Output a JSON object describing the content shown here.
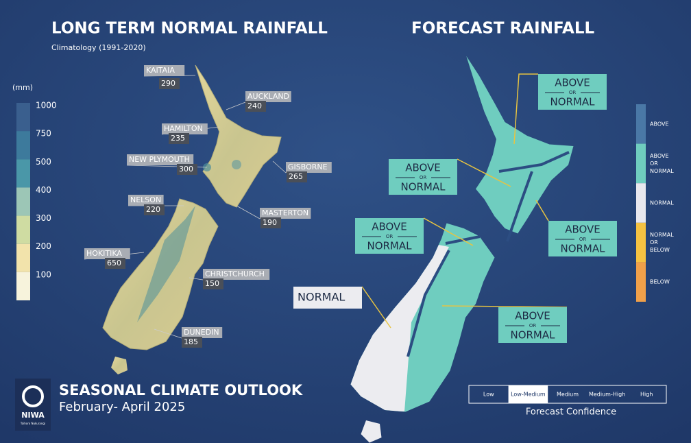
{
  "left": {
    "title": "LONG TERM NORMAL RAINFALL",
    "subtitle": "Climatology (1991-2020)",
    "unit": "(mm)",
    "scale": [
      {
        "label": 1000,
        "color": "#3a5f8e"
      },
      {
        "label": 750,
        "color": "#3d7a9c"
      },
      {
        "label": 500,
        "color": "#4a97a8"
      },
      {
        "label": 400,
        "color": "#9cc6b6"
      },
      {
        "label": 300,
        "color": "#cfdca2"
      },
      {
        "label": 200,
        "color": "#f2e3ab"
      },
      {
        "label": 100,
        "color": "#f7f3dc"
      }
    ],
    "cities": [
      {
        "name": "KAITAIA",
        "value": 290
      },
      {
        "name": "AUCKLAND",
        "value": 240
      },
      {
        "name": "HAMILTON",
        "value": 235
      },
      {
        "name": "NEW PLYMOUTH",
        "value": 300
      },
      {
        "name": "GISBORNE",
        "value": 265
      },
      {
        "name": "NELSON",
        "value": 220
      },
      {
        "name": "MASTERTON",
        "value": 190
      },
      {
        "name": "HOKITIKA",
        "value": 650
      },
      {
        "name": "CHRISTCHURCH",
        "value": 150
      },
      {
        "name": "DUNEDIN",
        "value": 185
      }
    ]
  },
  "right": {
    "title": "FORECAST RAINFALL",
    "regions": [
      {
        "lines": [
          "ABOVE",
          "OR",
          "NORMAL"
        ],
        "color": "#6fcdbf"
      },
      {
        "lines": [
          "ABOVE",
          "OR",
          "NORMAL"
        ],
        "color": "#6fcdbf"
      },
      {
        "lines": [
          "ABOVE",
          "OR",
          "NORMAL"
        ],
        "color": "#6fcdbf"
      },
      {
        "lines": [
          "ABOVE",
          "OR",
          "NORMAL"
        ],
        "color": "#6fcdbf"
      },
      {
        "lines": [
          "ABOVE",
          "OR",
          "NORMAL"
        ],
        "color": "#6fcdbf"
      },
      {
        "lines": [
          "NORMAL"
        ],
        "color": "#ececf0"
      }
    ],
    "legend": [
      {
        "lines": [
          "ABOVE"
        ],
        "color": "#4a78a6"
      },
      {
        "lines": [
          "ABOVE",
          "OR",
          "NORMAL"
        ],
        "color": "#6fcdbf"
      },
      {
        "lines": [
          "NORMAL"
        ],
        "color": "#e8e8ee"
      },
      {
        "lines": [
          "NORMAL",
          "OR",
          "BELOW"
        ],
        "color": "#f5c242"
      },
      {
        "lines": [
          "BELOW"
        ],
        "color": "#f0a04a"
      }
    ],
    "confidence": {
      "levels": [
        {
          "label": "Low",
          "highlighted": false
        },
        {
          "label": "Low-Medium",
          "highlighted": true
        },
        {
          "label": "Medium",
          "highlighted": false
        },
        {
          "label": "Medium-High",
          "highlighted": false
        },
        {
          "label": "High",
          "highlighted": false
        }
      ],
      "label": "Forecast Confidence"
    }
  },
  "footer": {
    "logo": "NIWA",
    "logo_sub": "Taihoro Nukurangi",
    "title": "SEASONAL CLIMATE OUTLOOK",
    "subtitle": "February- April 2025"
  }
}
